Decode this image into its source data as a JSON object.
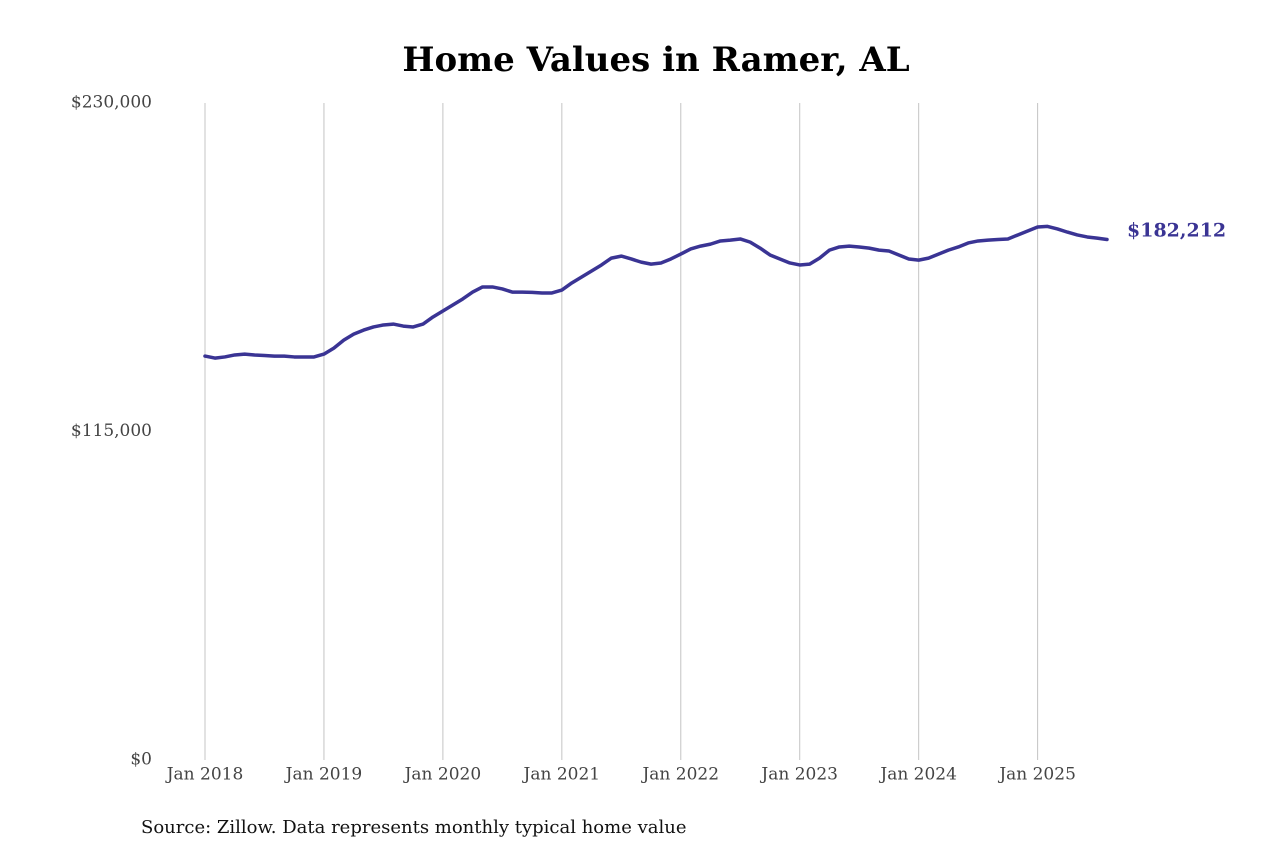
{
  "chart_data": {
    "type": "line",
    "title": "Home Values in Ramer, AL",
    "source": "Source: Zillow. Data represents monthly typical home value",
    "x": [
      "2018-01",
      "2018-02",
      "2018-03",
      "2018-04",
      "2018-05",
      "2018-06",
      "2018-07",
      "2018-08",
      "2018-09",
      "2018-10",
      "2018-11",
      "2018-12",
      "2019-01",
      "2019-02",
      "2019-03",
      "2019-04",
      "2019-05",
      "2019-06",
      "2019-07",
      "2019-08",
      "2019-09",
      "2019-10",
      "2019-11",
      "2019-12",
      "2020-01",
      "2020-02",
      "2020-03",
      "2020-04",
      "2020-05",
      "2020-06",
      "2020-07",
      "2020-08",
      "2020-09",
      "2020-10",
      "2020-11",
      "2020-12",
      "2021-01",
      "2021-02",
      "2021-03",
      "2021-04",
      "2021-05",
      "2021-06",
      "2021-07",
      "2021-08",
      "2021-09",
      "2021-10",
      "2021-11",
      "2021-12",
      "2022-01",
      "2022-02",
      "2022-03",
      "2022-04",
      "2022-05",
      "2022-06",
      "2022-07",
      "2022-08",
      "2022-09",
      "2022-10",
      "2022-11",
      "2022-12",
      "2023-01",
      "2023-02",
      "2023-03",
      "2023-04",
      "2023-05",
      "2023-06",
      "2023-07",
      "2023-08",
      "2023-09",
      "2023-10",
      "2023-11",
      "2023-12",
      "2024-01",
      "2024-02",
      "2024-03",
      "2024-04",
      "2024-05",
      "2024-06",
      "2024-07",
      "2024-08",
      "2024-09",
      "2024-10",
      "2024-11",
      "2024-12",
      "2025-01",
      "2025-02",
      "2025-03",
      "2025-04",
      "2025-05",
      "2025-06",
      "2025-07",
      "2025-08"
    ],
    "series": [
      {
        "name": "Ramer, AL",
        "color": "#3a3494",
        "values": [
          141400,
          140700,
          141100,
          141800,
          142100,
          141800,
          141600,
          141400,
          141400,
          141100,
          141100,
          141100,
          142100,
          144200,
          147000,
          149100,
          150500,
          151600,
          152300,
          152600,
          151900,
          151600,
          152600,
          155100,
          157200,
          159300,
          161400,
          163800,
          165600,
          165600,
          164900,
          163800,
          163800,
          163700,
          163500,
          163500,
          164500,
          167000,
          169100,
          171200,
          173300,
          175700,
          176400,
          175400,
          174300,
          173600,
          174000,
          175400,
          177100,
          178900,
          179900,
          180600,
          181700,
          182000,
          182400,
          181300,
          179200,
          176800,
          175400,
          174000,
          173300,
          173600,
          175700,
          178500,
          179600,
          179900,
          179600,
          179200,
          178500,
          178200,
          176800,
          175400,
          175000,
          175700,
          177100,
          178500,
          179600,
          181000,
          181700,
          182000,
          182200,
          182400,
          183800,
          185200,
          186600,
          186800,
          185900,
          184800,
          183800,
          183100,
          182700,
          182212
        ],
        "value_labels": [
          null,
          null,
          null,
          null,
          null,
          null,
          null,
          null,
          null,
          null,
          null,
          null,
          null,
          null,
          null,
          null,
          null,
          null,
          null,
          null,
          null,
          null,
          null,
          null,
          null,
          null,
          null,
          null,
          null,
          null,
          null,
          null,
          null,
          null,
          null,
          null,
          null,
          null,
          null,
          null,
          null,
          null,
          null,
          null,
          null,
          null,
          null,
          null,
          null,
          null,
          null,
          null,
          null,
          null,
          null,
          null,
          null,
          null,
          null,
          null,
          null,
          null,
          null,
          null,
          null,
          null,
          null,
          null,
          null,
          null,
          null,
          null,
          null,
          null,
          null,
          null,
          null,
          null,
          null,
          null,
          null,
          null,
          null,
          null,
          null,
          null,
          null,
          null,
          null,
          null,
          null,
          "$182,212"
        ]
      }
    ],
    "xlim": [
      "2018-01",
      "2025-08"
    ],
    "xticks": [
      {
        "value": "2018-01",
        "label": "Jan 2018"
      },
      {
        "value": "2019-01",
        "label": "Jan 2019"
      },
      {
        "value": "2020-01",
        "label": "Jan 2020"
      },
      {
        "value": "2021-01",
        "label": "Jan 2021"
      },
      {
        "value": "2022-01",
        "label": "Jan 2022"
      },
      {
        "value": "2023-01",
        "label": "Jan 2023"
      },
      {
        "value": "2024-01",
        "label": "Jan 2024"
      },
      {
        "value": "2025-01",
        "label": "Jan 2025"
      }
    ],
    "ylim": [
      0,
      230000
    ],
    "yticks": [
      {
        "value": 0,
        "label": "$0"
      },
      {
        "value": 115000,
        "label": "$115,000"
      },
      {
        "value": 230000,
        "label": "$230,000"
      }
    ],
    "grid": "x"
  }
}
